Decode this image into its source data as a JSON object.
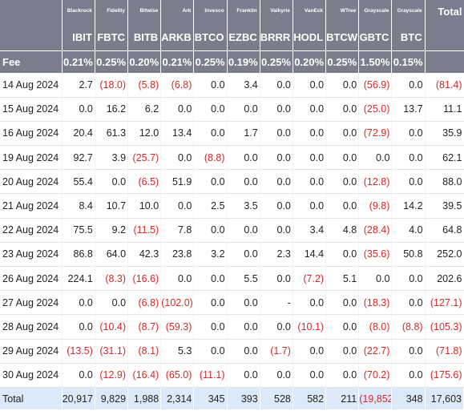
{
  "header": {
    "issuers": [
      "",
      "Blackrock",
      "Fidelity",
      "Bitwise",
      "Ark",
      "Invesco",
      "Franklin",
      "Valkyrie",
      "VanEck",
      "WTree",
      "Grayscale",
      "Grayscale",
      "Total"
    ],
    "tickers": [
      "",
      "IBIT",
      "FBTC",
      "BITB",
      "ARKB",
      "BTCO",
      "EZBC",
      "BRRR",
      "HODL",
      "BTCW",
      "GBTC",
      "BTC",
      ""
    ],
    "fees": [
      "Fee",
      "0.21%",
      "0.25%",
      "0.20%",
      "0.21%",
      "0.25%",
      "0.19%",
      "0.25%",
      "0.20%",
      "0.25%",
      "1.50%",
      "0.15%",
      ""
    ]
  },
  "rows": [
    [
      "14 Aug 2024",
      "2.7",
      "(18.0)",
      "(5.8)",
      "(6.8)",
      "0.0",
      "3.4",
      "0.0",
      "0.0",
      "0.0",
      "(56.9)",
      "0.0",
      "(81.4)"
    ],
    [
      "15 Aug 2024",
      "0.0",
      "16.2",
      "6.2",
      "0.0",
      "0.0",
      "0.0",
      "0.0",
      "0.0",
      "0.0",
      "(25.0)",
      "13.7",
      "11.1"
    ],
    [
      "16 Aug 2024",
      "20.4",
      "61.3",
      "12.0",
      "13.4",
      "0.0",
      "1.7",
      "0.0",
      "0.0",
      "0.0",
      "(72.9)",
      "0.0",
      "35.9"
    ],
    [
      "19 Aug 2024",
      "92.7",
      "3.9",
      "(25.7)",
      "0.0",
      "(8.8)",
      "0.0",
      "0.0",
      "0.0",
      "0.0",
      "0.0",
      "0.0",
      "62.1"
    ],
    [
      "20 Aug 2024",
      "55.4",
      "0.0",
      "(6.5)",
      "51.9",
      "0.0",
      "0.0",
      "0.0",
      "0.0",
      "0.0",
      "(12.8)",
      "0.0",
      "88.0"
    ],
    [
      "21 Aug 2024",
      "8.4",
      "10.7",
      "10.0",
      "0.0",
      "2.5",
      "3.5",
      "0.0",
      "0.0",
      "0.0",
      "(9.8)",
      "14.2",
      "39.5"
    ],
    [
      "22 Aug 2024",
      "75.5",
      "9.2",
      "(11.5)",
      "7.8",
      "0.0",
      "0.0",
      "0.0",
      "3.4",
      "4.8",
      "(28.4)",
      "4.0",
      "64.8"
    ],
    [
      "23 Aug 2024",
      "86.8",
      "64.0",
      "42.3",
      "23.8",
      "3.2",
      "0.0",
      "2.3",
      "14.4",
      "0.0",
      "(35.6)",
      "50.8",
      "252.0"
    ],
    [
      "26 Aug 2024",
      "224.1",
      "(8.3)",
      "(16.6)",
      "0.0",
      "0.0",
      "5.5",
      "0.0",
      "(7.2)",
      "5.1",
      "0.0",
      "0.0",
      "202.6"
    ],
    [
      "27 Aug 2024",
      "0.0",
      "0.0",
      "(6.8)",
      "(102.0)",
      "0.0",
      "0.0",
      "-",
      "0.0",
      "0.0",
      "(18.3)",
      "0.0",
      "(127.1)"
    ],
    [
      "28 Aug 2024",
      "0.0",
      "(10.4)",
      "(8.7)",
      "(59.3)",
      "0.0",
      "0.0",
      "0.0",
      "(10.1)",
      "0.0",
      "(8.0)",
      "(8.8)",
      "(105.3)"
    ],
    [
      "29 Aug 2024",
      "(13.5)",
      "(31.1)",
      "(8.1)",
      "5.3",
      "0.0",
      "0.0",
      "(1.7)",
      "0.0",
      "0.0",
      "(22.7)",
      "0.0",
      "(71.8)"
    ],
    [
      "30 Aug 2024",
      "0.0",
      "(12.9)",
      "(16.4)",
      "(65.0)",
      "(11.1)",
      "0.0",
      "0.0",
      "0.0",
      "0.0",
      "(70.2)",
      "0.0",
      "(175.6)"
    ]
  ],
  "totals": [
    "Total",
    "20,917",
    "9,829",
    "1,988",
    "2,314",
    "345",
    "393",
    "528",
    "582",
    "211",
    "(19,852)",
    "348",
    "17,603"
  ],
  "colors": {
    "header_bg": "#7a7e8c",
    "negative": "#d42a2a",
    "total_bg": "#dce9f8"
  }
}
